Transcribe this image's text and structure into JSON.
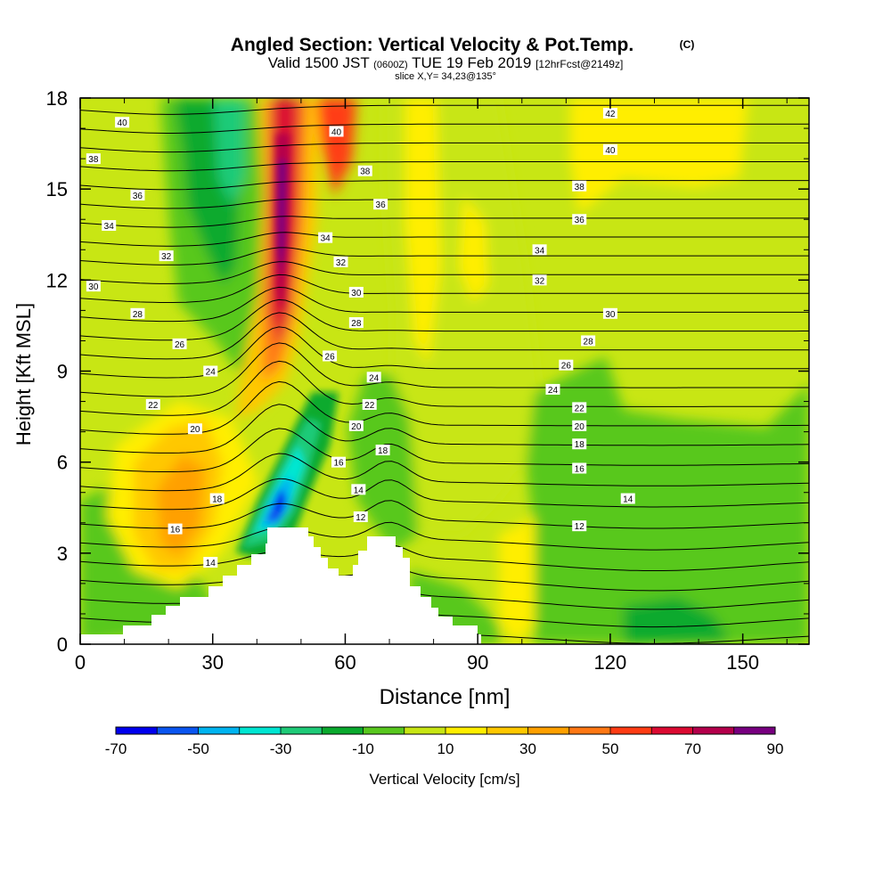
{
  "chart_data": {
    "type": "contour",
    "title": "Angled Section: Vertical Velocity & Pot.Temp.",
    "title_unit": "(C)",
    "subtitle_parts": [
      "Valid 1500 JST",
      "(0600Z)",
      "TUE 19 Feb 2019",
      "[12hrFcst@2149z]"
    ],
    "subtitle2": "slice X,Y= 34,23@135°",
    "xlabel": "Distance [nm]",
    "ylabel": "Height [Kft MSL]",
    "xlim": [
      0,
      165
    ],
    "ylim": [
      0,
      18
    ],
    "x_ticks": [
      "0",
      "30",
      "60",
      "90",
      "120",
      "150"
    ],
    "y_ticks": [
      "0",
      "3",
      "6",
      "9",
      "12",
      "15",
      "18"
    ],
    "colorbar": {
      "label": "Vertical Velocity [cm/s]",
      "tick_labels": [
        "-70",
        "-50",
        "-30",
        "-10",
        "10",
        "30",
        "50",
        "70",
        "90"
      ],
      "boundaries": [
        -70,
        -60,
        -50,
        -40,
        -30,
        -20,
        -10,
        0,
        10,
        20,
        30,
        40,
        50,
        60,
        70,
        80,
        90
      ],
      "colors": [
        "#0000ee",
        "#0a55f0",
        "#00b4f0",
        "#00e6d2",
        "#1ecb78",
        "#0aaa2e",
        "#58c81e",
        "#c8e614",
        "#ffee00",
        "#ffc800",
        "#ffa000",
        "#ff7814",
        "#ff3c14",
        "#dc0a32",
        "#b4004b",
        "#780080"
      ]
    },
    "isentrope_labels": [
      {
        "t": "40",
        "x": 9.5,
        "y": 17.2
      },
      {
        "t": "38",
        "x": 3,
        "y": 16.0
      },
      {
        "t": "36",
        "x": 13,
        "y": 14.8
      },
      {
        "t": "34",
        "x": 6.5,
        "y": 13.8
      },
      {
        "t": "32",
        "x": 19.5,
        "y": 12.8
      },
      {
        "t": "30",
        "x": 3,
        "y": 11.8
      },
      {
        "t": "28",
        "x": 13,
        "y": 10.9
      },
      {
        "t": "26",
        "x": 22.5,
        "y": 9.9
      },
      {
        "t": "24",
        "x": 29.5,
        "y": 9.0
      },
      {
        "t": "22",
        "x": 16.5,
        "y": 7.9
      },
      {
        "t": "20",
        "x": 26,
        "y": 7.1
      },
      {
        "t": "18",
        "x": 31,
        "y": 4.8
      },
      {
        "t": "16",
        "x": 21.5,
        "y": 3.8
      },
      {
        "t": "14",
        "x": 29.5,
        "y": 2.7
      },
      {
        "t": "40",
        "x": 58,
        "y": 16.9
      },
      {
        "t": "38",
        "x": 64.5,
        "y": 15.6
      },
      {
        "t": "36",
        "x": 68,
        "y": 14.5
      },
      {
        "t": "34",
        "x": 55.5,
        "y": 13.4
      },
      {
        "t": "32",
        "x": 59,
        "y": 12.6
      },
      {
        "t": "30",
        "x": 62.5,
        "y": 11.6
      },
      {
        "t": "28",
        "x": 62.5,
        "y": 10.6
      },
      {
        "t": "26",
        "x": 56.5,
        "y": 9.5
      },
      {
        "t": "24",
        "x": 66.5,
        "y": 8.8
      },
      {
        "t": "22",
        "x": 65.5,
        "y": 7.9
      },
      {
        "t": "20",
        "x": 62.5,
        "y": 7.2
      },
      {
        "t": "18",
        "x": 68.5,
        "y": 6.4
      },
      {
        "t": "16",
        "x": 58.5,
        "y": 6.0
      },
      {
        "t": "14",
        "x": 63,
        "y": 5.1
      },
      {
        "t": "12",
        "x": 63.5,
        "y": 4.2
      },
      {
        "t": "42",
        "x": 120,
        "y": 17.5
      },
      {
        "t": "40",
        "x": 120,
        "y": 16.3
      },
      {
        "t": "38",
        "x": 113,
        "y": 15.1
      },
      {
        "t": "36",
        "x": 113,
        "y": 14.0
      },
      {
        "t": "34",
        "x": 104,
        "y": 13.0
      },
      {
        "t": "32",
        "x": 104,
        "y": 12.0
      },
      {
        "t": "30",
        "x": 120,
        "y": 10.9
      },
      {
        "t": "28",
        "x": 115,
        "y": 10.0
      },
      {
        "t": "26",
        "x": 110,
        "y": 9.2
      },
      {
        "t": "24",
        "x": 107,
        "y": 8.4
      },
      {
        "t": "22",
        "x": 113,
        "y": 7.8
      },
      {
        "t": "20",
        "x": 113,
        "y": 7.2
      },
      {
        "t": "18",
        "x": 113,
        "y": 6.6
      },
      {
        "t": "16",
        "x": 113,
        "y": 5.8
      },
      {
        "t": "14",
        "x": 124,
        "y": 4.8
      },
      {
        "t": "12",
        "x": 113,
        "y": 3.9
      }
    ]
  }
}
